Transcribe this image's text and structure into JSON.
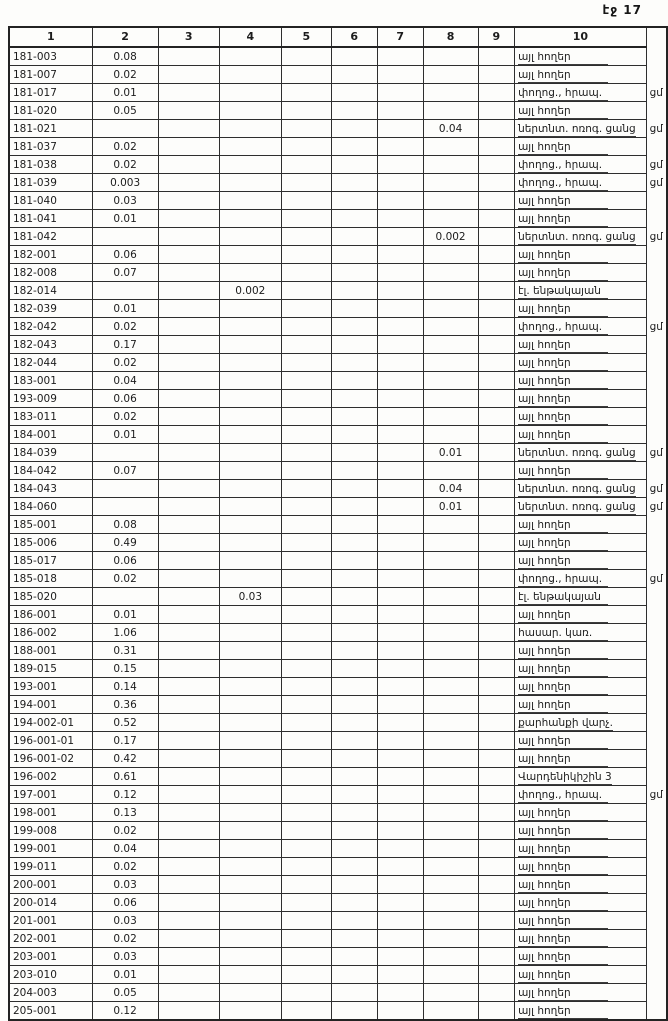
{
  "page": {
    "number_label": "էջ 17"
  },
  "colors": {
    "paper": "#fdfdfb",
    "ink": "#1c1c1c",
    "border": "#2e2e2e"
  },
  "table": {
    "column_headers": [
      "1",
      "2",
      "3",
      "4",
      "5",
      "6",
      "7",
      "8",
      "9",
      "10"
    ],
    "land_use_legend": [
      "այլ հողեր",
      "փողոց., հրապ.",
      "ներտնտ. ոռոգ. ցանց",
      "էլ. ենթակայան",
      "հասար. կառ.",
      "քարհանքի վարչ."
    ],
    "margin_note_text": "ցմ",
    "rows": [
      {
        "cells": [
          "181-003",
          "0.08",
          "",
          "",
          "",
          "",
          "",
          "",
          "",
          "այլ հողեր"
        ],
        "note": ""
      },
      {
        "cells": [
          "181-007",
          "0.02",
          "",
          "",
          "",
          "",
          "",
          "",
          "",
          "այլ հողեր"
        ],
        "note": ""
      },
      {
        "cells": [
          "181-017",
          "0.01",
          "",
          "",
          "",
          "",
          "",
          "",
          "",
          "փողոց., հրապ."
        ],
        "note": "ցմ"
      },
      {
        "cells": [
          "181-020",
          "0.05",
          "",
          "",
          "",
          "",
          "",
          "",
          "",
          "այլ հողեր"
        ],
        "note": ""
      },
      {
        "cells": [
          "181-021",
          "",
          "",
          "",
          "",
          "",
          "",
          "0.04",
          "",
          "ներտնտ. ոռոգ. ցանց"
        ],
        "note": "ցմ"
      },
      {
        "cells": [
          "181-037",
          "0.02",
          "",
          "",
          "",
          "",
          "",
          "",
          "",
          "այլ հողեր"
        ],
        "note": ""
      },
      {
        "cells": [
          "181-038",
          "0.02",
          "",
          "",
          "",
          "",
          "",
          "",
          "",
          "փողոց., հրապ."
        ],
        "note": "ցմ"
      },
      {
        "cells": [
          "181-039",
          "0.003",
          "",
          "",
          "",
          "",
          "",
          "",
          "",
          "փողոց., հրապ."
        ],
        "note": "ցմ"
      },
      {
        "cells": [
          "181-040",
          "0.03",
          "",
          "",
          "",
          "",
          "",
          "",
          "",
          "այլ հողեր"
        ],
        "note": ""
      },
      {
        "cells": [
          "181-041",
          "0.01",
          "",
          "",
          "",
          "",
          "",
          "",
          "",
          "այլ հողեր"
        ],
        "note": ""
      },
      {
        "cells": [
          "181-042",
          "",
          "",
          "",
          "",
          "",
          "",
          "0.002",
          "",
          "ներտնտ. ոռոգ. ցանց"
        ],
        "note": "ցմ"
      },
      {
        "cells": [
          "182-001",
          "0.06",
          "",
          "",
          "",
          "",
          "",
          "",
          "",
          "այլ հողեր"
        ],
        "note": ""
      },
      {
        "cells": [
          "182-008",
          "0.07",
          "",
          "",
          "",
          "",
          "",
          "",
          "",
          "այլ հողեր"
        ],
        "note": ""
      },
      {
        "cells": [
          "182-014",
          "",
          "",
          "0.002",
          "",
          "",
          "",
          "",
          "",
          "էլ. ենթակայան"
        ],
        "note": ""
      },
      {
        "cells": [
          "182-039",
          "0.01",
          "",
          "",
          "",
          "",
          "",
          "",
          "",
          "այլ հողեր"
        ],
        "note": ""
      },
      {
        "cells": [
          "182-042",
          "0.02",
          "",
          "",
          "",
          "",
          "",
          "",
          "",
          "փողոց., հրապ."
        ],
        "note": "ցմ"
      },
      {
        "cells": [
          "182-043",
          "0.17",
          "",
          "",
          "",
          "",
          "",
          "",
          "",
          "այլ հողեր"
        ],
        "note": ""
      },
      {
        "cells": [
          "182-044",
          "0.02",
          "",
          "",
          "",
          "",
          "",
          "",
          "",
          "այլ հողեր"
        ],
        "note": ""
      },
      {
        "cells": [
          "183-001",
          "0.04",
          "",
          "",
          "",
          "",
          "",
          "",
          "",
          "այլ հողեր"
        ],
        "note": ""
      },
      {
        "cells": [
          "193-009",
          "0.06",
          "",
          "",
          "",
          "",
          "",
          "",
          "",
          "այլ հողեր"
        ],
        "note": ""
      },
      {
        "cells": [
          "183-011",
          "0.02",
          "",
          "",
          "",
          "",
          "",
          "",
          "",
          "այլ հողեր"
        ],
        "note": ""
      },
      {
        "cells": [
          "184-001",
          "0.01",
          "",
          "",
          "",
          "",
          "",
          "",
          "",
          "այլ հողեր"
        ],
        "note": ""
      },
      {
        "cells": [
          "184-039",
          "",
          "",
          "",
          "",
          "",
          "",
          "0.01",
          "",
          "ներտնտ. ոռոգ. ցանց"
        ],
        "note": "ցմ"
      },
      {
        "cells": [
          "184-042",
          "0.07",
          "",
          "",
          "",
          "",
          "",
          "",
          "",
          "այլ հողեր"
        ],
        "note": ""
      },
      {
        "cells": [
          "184-043",
          "",
          "",
          "",
          "",
          "",
          "",
          "0.04",
          "",
          "ներտնտ. ոռոգ. ցանց"
        ],
        "note": "ցմ"
      },
      {
        "cells": [
          "184-060",
          "",
          "",
          "",
          "",
          "",
          "",
          "0.01",
          "",
          "ներտնտ. ոռոգ. ցանց"
        ],
        "note": "ցմ"
      },
      {
        "cells": [
          "185-001",
          "0.08",
          "",
          "",
          "",
          "",
          "",
          "",
          "",
          "այլ հողեր"
        ],
        "note": ""
      },
      {
        "cells": [
          "185-006",
          "0.49",
          "",
          "",
          "",
          "",
          "",
          "",
          "",
          "այլ հողեր"
        ],
        "note": ""
      },
      {
        "cells": [
          "185-017",
          "0.06",
          "",
          "",
          "",
          "",
          "",
          "",
          "",
          "այլ հողեր"
        ],
        "note": ""
      },
      {
        "cells": [
          "185-018",
          "0.02",
          "",
          "",
          "",
          "",
          "",
          "",
          "",
          "փողոց., հրապ."
        ],
        "note": "ցմ"
      },
      {
        "cells": [
          "185-020",
          "",
          "",
          "0.03",
          "",
          "",
          "",
          "",
          "",
          "էլ. ենթակայան"
        ],
        "note": ""
      },
      {
        "cells": [
          "186-001",
          "0.01",
          "",
          "",
          "",
          "",
          "",
          "",
          "",
          "այլ հողեր"
        ],
        "note": ""
      },
      {
        "cells": [
          "186-002",
          "1.06",
          "",
          "",
          "",
          "",
          "",
          "",
          "",
          "հասար. կառ."
        ],
        "note": ""
      },
      {
        "cells": [
          "188-001",
          "0.31",
          "",
          "",
          "",
          "",
          "",
          "",
          "",
          "այլ հողեր"
        ],
        "note": ""
      },
      {
        "cells": [
          "189-015",
          "0.15",
          "",
          "",
          "",
          "",
          "",
          "",
          "",
          "այլ հողեր"
        ],
        "note": ""
      },
      {
        "cells": [
          "193-001",
          "0.14",
          "",
          "",
          "",
          "",
          "",
          "",
          "",
          "այլ հողեր"
        ],
        "note": ""
      },
      {
        "cells": [
          "194-001",
          "0.36",
          "",
          "",
          "",
          "",
          "",
          "",
          "",
          "այլ հողեր"
        ],
        "note": ""
      },
      {
        "cells": [
          "194-002-01",
          "0.52",
          "",
          "",
          "",
          "",
          "",
          "",
          "",
          "քարհանքի վարչ."
        ],
        "note": ""
      },
      {
        "cells": [
          "196-001-01",
          "0.17",
          "",
          "",
          "",
          "",
          "",
          "",
          "",
          "այլ հողեր"
        ],
        "note": ""
      },
      {
        "cells": [
          "196-001-02",
          "0.42",
          "",
          "",
          "",
          "",
          "",
          "",
          "",
          "այլ հողեր"
        ],
        "note": ""
      },
      {
        "cells": [
          "196-002",
          "0.61",
          "",
          "",
          "",
          "",
          "",
          "",
          "",
          "Վարդենիկիշին 3"
        ],
        "note": ""
      },
      {
        "cells": [
          "197-001",
          "0.12",
          "",
          "",
          "",
          "",
          "",
          "",
          "",
          "փողոց., հրապ."
        ],
        "note": "ցմ"
      },
      {
        "cells": [
          "198-001",
          "0.13",
          "",
          "",
          "",
          "",
          "",
          "",
          "",
          "այլ հողեր"
        ],
        "note": ""
      },
      {
        "cells": [
          "199-008",
          "0.02",
          "",
          "",
          "",
          "",
          "",
          "",
          "",
          "այլ հողեր"
        ],
        "note": ""
      },
      {
        "cells": [
          "199-001",
          "0.04",
          "",
          "",
          "",
          "",
          "",
          "",
          "",
          "այլ հողեր"
        ],
        "note": ""
      },
      {
        "cells": [
          "199-011",
          "0.02",
          "",
          "",
          "",
          "",
          "",
          "",
          "",
          "այլ հողեր"
        ],
        "note": ""
      },
      {
        "cells": [
          "200-001",
          "0.03",
          "",
          "",
          "",
          "",
          "",
          "",
          "",
          "այլ հողեր"
        ],
        "note": ""
      },
      {
        "cells": [
          "200-014",
          "0.06",
          "",
          "",
          "",
          "",
          "",
          "",
          "",
          "այլ հողեր"
        ],
        "note": ""
      },
      {
        "cells": [
          "201-001",
          "0.03",
          "",
          "",
          "",
          "",
          "",
          "",
          "",
          "այլ հողեր"
        ],
        "note": ""
      },
      {
        "cells": [
          "202-001",
          "0.02",
          "",
          "",
          "",
          "",
          "",
          "",
          "",
          "այլ հողեր"
        ],
        "note": ""
      },
      {
        "cells": [
          "203-001",
          "0.03",
          "",
          "",
          "",
          "",
          "",
          "",
          "",
          "այլ հողեր"
        ],
        "note": ""
      },
      {
        "cells": [
          "203-010",
          "0.01",
          "",
          "",
          "",
          "",
          "",
          "",
          "",
          "այլ հողեր"
        ],
        "note": ""
      },
      {
        "cells": [
          "204-003",
          "0.05",
          "",
          "",
          "",
          "",
          "",
          "",
          "",
          "այլ հողեր"
        ],
        "note": ""
      },
      {
        "cells": [
          "205-001",
          "0.12",
          "",
          "",
          "",
          "",
          "",
          "",
          "",
          "այլ հողեր"
        ],
        "note": ""
      }
    ]
  }
}
